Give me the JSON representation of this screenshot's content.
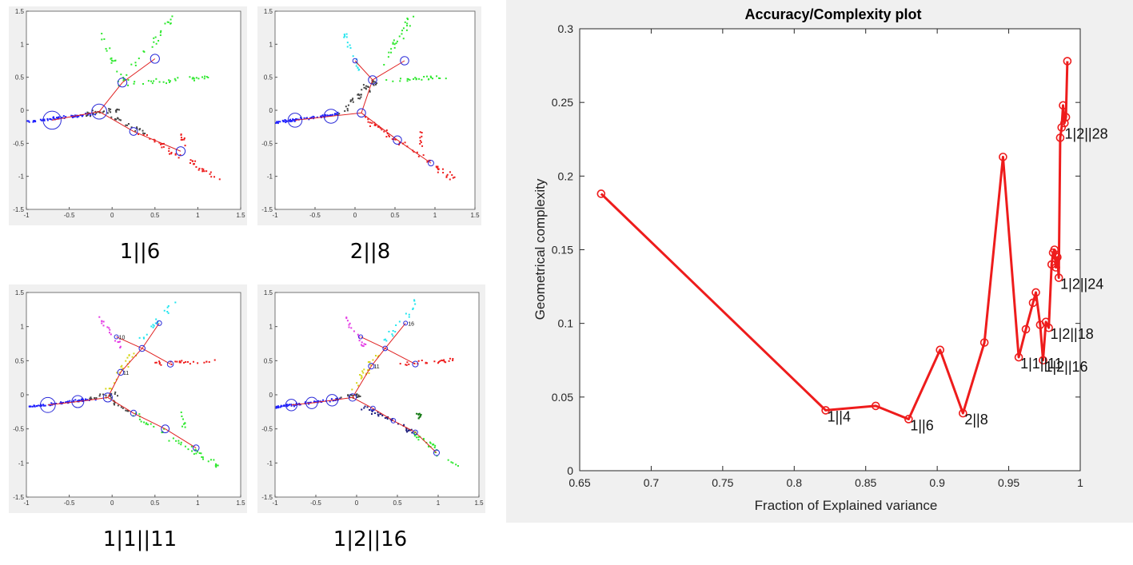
{
  "captions": [
    "1||6",
    "2||8",
    "1|1||11",
    "1|2||16"
  ],
  "colors": {
    "blue": "#1f1fff",
    "red": "#ee1c1c",
    "green": "#2ee82e",
    "cyan": "#22e5ee",
    "magenta": "#e43ae4",
    "yellow": "#d6d61a",
    "gray": "#444444",
    "darkgreen": "#157a15",
    "navy": "#1a1a7a"
  },
  "chart_data": [
    {
      "type": "line",
      "title": "Accuracy/Complexity plot",
      "xlabel": "Fraction of Explained variance",
      "ylabel": "Geometrical complexity",
      "xlim": [
        0.65,
        1
      ],
      "ylim": [
        0,
        0.3
      ],
      "xticks": [
        "0.65",
        "0.7",
        "0.75",
        "0.8",
        "0.85",
        "0.9",
        "0.95",
        "1"
      ],
      "yticks": [
        "0",
        "0.05",
        "0.1",
        "0.15",
        "0.2",
        "0.25",
        "0.3"
      ],
      "grid": false,
      "series": [
        {
          "color": "#ee1c1c",
          "marker": "circle",
          "x": [
            0.665,
            0.822,
            0.857,
            0.88,
            0.902,
            0.918,
            0.933,
            0.946,
            0.957,
            0.962,
            0.967,
            0.969,
            0.972,
            0.974,
            0.976,
            0.978,
            0.98,
            0.981,
            0.982,
            0.983,
            0.984,
            0.985,
            0.986,
            0.987,
            0.988,
            0.989,
            0.99,
            0.991
          ],
          "y": [
            0.188,
            0.041,
            0.044,
            0.035,
            0.082,
            0.039,
            0.087,
            0.213,
            0.077,
            0.096,
            0.114,
            0.121,
            0.099,
            0.075,
            0.101,
            0.097,
            0.14,
            0.148,
            0.15,
            0.138,
            0.145,
            0.131,
            0.226,
            0.233,
            0.248,
            0.236,
            0.24,
            0.278
          ]
        }
      ],
      "annotations": [
        {
          "text": "1||4",
          "x": 0.822,
          "y": 0.041
        },
        {
          "text": "1||6",
          "x": 0.88,
          "y": 0.035
        },
        {
          "text": "2||8",
          "x": 0.918,
          "y": 0.039
        },
        {
          "text": "1|1||11",
          "x": 0.957,
          "y": 0.077
        },
        {
          "text": "1|2||16",
          "x": 0.974,
          "y": 0.075
        },
        {
          "text": "1|2||18",
          "x": 0.978,
          "y": 0.097
        },
        {
          "text": "1|2||24",
          "x": 0.985,
          "y": 0.131
        },
        {
          "text": "1|2||28",
          "x": 0.988,
          "y": 0.233
        }
      ]
    },
    {
      "type": "scatter",
      "xlim": [
        -1,
        1.5
      ],
      "ylim": [
        -1.5,
        1.5
      ],
      "xticks": [
        "-1",
        "-0.5",
        "0",
        "0.5",
        "1",
        "1.5"
      ],
      "yticks": [
        "-1.5",
        "-1",
        "-0.5",
        "0",
        "0.5",
        "1",
        "1.5"
      ],
      "branches": [
        {
          "color": "blue",
          "from": [
            -1.0,
            -0.18
          ],
          "to": [
            -0.2,
            -0.05
          ],
          "n": 70,
          "spread": 0.03
        },
        {
          "color": "gray",
          "from": [
            -0.3,
            -0.06
          ],
          "to": [
            0.1,
            0.0
          ],
          "n": 25,
          "spread": 0.05
        },
        {
          "color": "green",
          "from": [
            0.1,
            0.4
          ],
          "to": [
            0.7,
            1.4
          ],
          "n": 30,
          "spread": 0.07
        },
        {
          "color": "green",
          "from": [
            -0.15,
            1.2
          ],
          "to": [
            0.1,
            0.5
          ],
          "n": 15,
          "spread": 0.05
        },
        {
          "color": "green",
          "from": [
            0.2,
            0.4
          ],
          "to": [
            1.15,
            0.5
          ],
          "n": 30,
          "spread": 0.05
        },
        {
          "color": "gray",
          "from": [
            0.0,
            -0.1
          ],
          "to": [
            0.4,
            -0.35
          ],
          "n": 20,
          "spread": 0.05
        },
        {
          "color": "red",
          "from": [
            0.35,
            -0.35
          ],
          "to": [
            1.25,
            -1.05
          ],
          "n": 45,
          "spread": 0.07
        },
        {
          "color": "red",
          "from": [
            0.8,
            -0.3
          ],
          "to": [
            0.85,
            -0.55
          ],
          "n": 8,
          "spread": 0.04
        }
      ],
      "nodes": [
        {
          "x": -0.7,
          "y": -0.15,
          "r": 3
        },
        {
          "x": -0.15,
          "y": -0.02,
          "r": 2.5
        },
        {
          "x": 0.12,
          "y": 0.42,
          "r": 1.5
        },
        {
          "x": 0.5,
          "y": 0.78,
          "r": 1.5
        },
        {
          "x": 0.25,
          "y": -0.32,
          "r": 1.3
        },
        {
          "x": 0.8,
          "y": -0.62,
          "r": 1.5
        }
      ],
      "edges": [
        [
          0,
          1
        ],
        [
          1,
          2
        ],
        [
          2,
          3
        ],
        [
          1,
          4
        ],
        [
          4,
          5
        ]
      ]
    },
    {
      "type": "scatter",
      "xlim": [
        -1,
        1.5
      ],
      "ylim": [
        -1.5,
        1.5
      ],
      "xticks": [
        "-1",
        "-0.5",
        "0",
        "0.5",
        "1",
        "1.5"
      ],
      "yticks": [
        "-1.5",
        "-1",
        "-0.5",
        "0",
        "0.5",
        "1",
        "1.5"
      ],
      "branches": [
        {
          "color": "blue",
          "from": [
            -1.0,
            -0.18
          ],
          "to": [
            -0.2,
            -0.06
          ],
          "n": 70,
          "spread": 0.03
        },
        {
          "color": "gray",
          "from": [
            -0.2,
            -0.05
          ],
          "to": [
            0.25,
            0.45
          ],
          "n": 40,
          "spread": 0.09
        },
        {
          "color": "cyan",
          "from": [
            -0.15,
            1.2
          ],
          "to": [
            0.05,
            0.6
          ],
          "n": 18,
          "spread": 0.04
        },
        {
          "color": "green",
          "from": [
            0.3,
            0.6
          ],
          "to": [
            0.7,
            1.4
          ],
          "n": 25,
          "spread": 0.07
        },
        {
          "color": "green",
          "from": [
            0.35,
            0.45
          ],
          "to": [
            1.15,
            0.5
          ],
          "n": 25,
          "spread": 0.05
        },
        {
          "color": "red",
          "from": [
            0.1,
            -0.1
          ],
          "to": [
            1.25,
            -1.05
          ],
          "n": 55,
          "spread": 0.07
        },
        {
          "color": "red",
          "from": [
            0.8,
            -0.3
          ],
          "to": [
            0.85,
            -0.55
          ],
          "n": 8,
          "spread": 0.04
        }
      ],
      "nodes": [
        {
          "x": -0.75,
          "y": -0.15,
          "r": 2.5
        },
        {
          "x": -0.3,
          "y": -0.09,
          "r": 2.5
        },
        {
          "x": 0.08,
          "y": -0.04,
          "r": 1.5
        },
        {
          "x": 0.22,
          "y": 0.46,
          "r": 1.5
        },
        {
          "x": 0.0,
          "y": 0.75,
          "r": 0.8
        },
        {
          "x": 0.62,
          "y": 0.75,
          "r": 1.5
        },
        {
          "x": 0.53,
          "y": -0.45,
          "r": 1.5
        },
        {
          "x": 0.95,
          "y": -0.8,
          "r": 1.0
        }
      ],
      "edges": [
        [
          0,
          1
        ],
        [
          1,
          2
        ],
        [
          2,
          3
        ],
        [
          3,
          4
        ],
        [
          3,
          5
        ],
        [
          2,
          6
        ],
        [
          6,
          7
        ]
      ]
    },
    {
      "type": "scatter",
      "xlim": [
        -1,
        1.5
      ],
      "ylim": [
        -1.5,
        1.5
      ],
      "xticks": [
        "-1",
        "-0.5",
        "0",
        "0.5",
        "1",
        "1.5"
      ],
      "yticks": [
        "-1.5",
        "-1",
        "-0.5",
        "0",
        "0.5",
        "1",
        "1.5"
      ],
      "branches": [
        {
          "color": "blue",
          "from": [
            -1.0,
            -0.18
          ],
          "to": [
            -0.2,
            -0.06
          ],
          "n": 70,
          "spread": 0.03
        },
        {
          "color": "gray",
          "from": [
            -0.25,
            -0.05
          ],
          "to": [
            0.05,
            0.0
          ],
          "n": 18,
          "spread": 0.05
        },
        {
          "color": "yellow",
          "from": [
            -0.05,
            0.05
          ],
          "to": [
            0.25,
            0.6
          ],
          "n": 22,
          "spread": 0.07
        },
        {
          "color": "magenta",
          "from": [
            -0.15,
            1.15
          ],
          "to": [
            0.1,
            0.7
          ],
          "n": 18,
          "spread": 0.04
        },
        {
          "color": "cyan",
          "from": [
            0.35,
            0.8
          ],
          "to": [
            0.75,
            1.4
          ],
          "n": 18,
          "spread": 0.06
        },
        {
          "color": "red",
          "from": [
            0.5,
            0.45
          ],
          "to": [
            1.2,
            0.5
          ],
          "n": 25,
          "spread": 0.05
        },
        {
          "color": "gray",
          "from": [
            0.0,
            -0.1
          ],
          "to": [
            0.2,
            -0.25
          ],
          "n": 12,
          "spread": 0.05
        },
        {
          "color": "green",
          "from": [
            0.2,
            -0.25
          ],
          "to": [
            1.25,
            -1.05
          ],
          "n": 45,
          "spread": 0.07
        },
        {
          "color": "green",
          "from": [
            0.8,
            -0.25
          ],
          "to": [
            0.85,
            -0.5
          ],
          "n": 8,
          "spread": 0.04
        }
      ],
      "nodes": [
        {
          "x": -0.75,
          "y": -0.15,
          "r": 2.5
        },
        {
          "x": -0.4,
          "y": -0.1,
          "r": 2.0
        },
        {
          "x": -0.05,
          "y": -0.04,
          "r": 1.5
        },
        {
          "x": 0.1,
          "y": 0.33,
          "r": 1.0
        },
        {
          "x": 0.35,
          "y": 0.68,
          "r": 1.0
        },
        {
          "x": 0.05,
          "y": 0.85,
          "r": 0.6
        },
        {
          "x": 0.55,
          "y": 1.05,
          "r": 0.8
        },
        {
          "x": 0.68,
          "y": 0.45,
          "r": 1.0
        },
        {
          "x": 0.25,
          "y": -0.27,
          "r": 1.0
        },
        {
          "x": 0.62,
          "y": -0.5,
          "r": 1.3
        },
        {
          "x": 0.98,
          "y": -0.78,
          "r": 1.0
        }
      ],
      "edges": [
        [
          0,
          1
        ],
        [
          1,
          2
        ],
        [
          2,
          3
        ],
        [
          3,
          4
        ],
        [
          4,
          5
        ],
        [
          4,
          6
        ],
        [
          4,
          7
        ],
        [
          2,
          8
        ],
        [
          8,
          9
        ],
        [
          9,
          10
        ]
      ],
      "node_labels": [
        {
          "text": "10",
          "node": 5
        },
        {
          "text": "11",
          "node": 3
        }
      ]
    },
    {
      "type": "scatter",
      "xlim": [
        -1,
        1.5
      ],
      "ylim": [
        -1.5,
        1.5
      ],
      "xticks": [
        "-1",
        "-0.5",
        "0",
        "0.5",
        "1",
        "1.5"
      ],
      "yticks": [
        "-1.5",
        "-1",
        "-0.5",
        "0",
        "0.5",
        "1",
        "1.5"
      ],
      "branches": [
        {
          "color": "blue",
          "from": [
            -1.0,
            -0.18
          ],
          "to": [
            -0.2,
            -0.06
          ],
          "n": 70,
          "spread": 0.03
        },
        {
          "color": "gray",
          "from": [
            -0.25,
            -0.05
          ],
          "to": [
            0.05,
            0.0
          ],
          "n": 18,
          "spread": 0.05
        },
        {
          "color": "yellow",
          "from": [
            -0.05,
            0.05
          ],
          "to": [
            0.25,
            0.6
          ],
          "n": 22,
          "spread": 0.07
        },
        {
          "color": "magenta",
          "from": [
            -0.15,
            1.15
          ],
          "to": [
            0.1,
            0.7
          ],
          "n": 18,
          "spread": 0.04
        },
        {
          "color": "cyan",
          "from": [
            0.35,
            0.8
          ],
          "to": [
            0.75,
            1.4
          ],
          "n": 18,
          "spread": 0.06
        },
        {
          "color": "red",
          "from": [
            0.5,
            0.45
          ],
          "to": [
            1.2,
            0.5
          ],
          "n": 25,
          "spread": 0.05
        },
        {
          "color": "navy",
          "from": [
            0.05,
            -0.15
          ],
          "to": [
            0.7,
            -0.55
          ],
          "n": 35,
          "spread": 0.06
        },
        {
          "color": "darkgreen",
          "from": [
            0.75,
            -0.2
          ],
          "to": [
            0.8,
            -0.45
          ],
          "n": 10,
          "spread": 0.04
        },
        {
          "color": "green",
          "from": [
            0.7,
            -0.55
          ],
          "to": [
            1.25,
            -1.05
          ],
          "n": 30,
          "spread": 0.06
        }
      ],
      "nodes": [
        {
          "x": -0.8,
          "y": -0.15,
          "r": 2.0
        },
        {
          "x": -0.55,
          "y": -0.12,
          "r": 2.0
        },
        {
          "x": -0.3,
          "y": -0.08,
          "r": 2.0
        },
        {
          "x": -0.05,
          "y": -0.04,
          "r": 1.3
        },
        {
          "x": 0.18,
          "y": 0.42,
          "r": 1.0
        },
        {
          "x": 0.35,
          "y": 0.68,
          "r": 0.8
        },
        {
          "x": 0.05,
          "y": 0.85,
          "r": 0.6
        },
        {
          "x": 0.6,
          "y": 1.05,
          "r": 0.6
        },
        {
          "x": 0.72,
          "y": 0.45,
          "r": 1.0
        },
        {
          "x": 0.2,
          "y": -0.2,
          "r": 0.8
        },
        {
          "x": 0.45,
          "y": -0.38,
          "r": 0.8
        },
        {
          "x": 0.72,
          "y": -0.55,
          "r": 0.8
        },
        {
          "x": 0.98,
          "y": -0.85,
          "r": 1.0
        }
      ],
      "edges": [
        [
          0,
          1
        ],
        [
          1,
          2
        ],
        [
          2,
          3
        ],
        [
          3,
          4
        ],
        [
          4,
          5
        ],
        [
          5,
          6
        ],
        [
          5,
          7
        ],
        [
          5,
          8
        ],
        [
          3,
          9
        ],
        [
          9,
          10
        ],
        [
          10,
          11
        ],
        [
          11,
          12
        ]
      ],
      "node_labels": [
        {
          "text": "16",
          "node": 7
        },
        {
          "text": "11",
          "node": 4
        }
      ]
    }
  ]
}
